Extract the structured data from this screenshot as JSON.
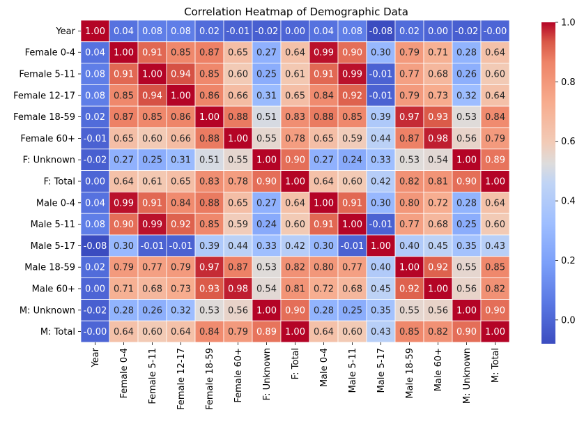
{
  "chart_data": {
    "type": "heatmap",
    "title": "Correlation Heatmap of Demographic Data",
    "labels": [
      "Year",
      "Female 0-4",
      "Female 5-11",
      "Female 12-17",
      "Female 18-59",
      "Female 60+",
      "F: Unknown",
      "F: Total",
      "Male 0-4",
      "Male 5-11",
      "Male 5-17",
      "Male 18-59",
      "Male 60+",
      "M: Unknown",
      "M: Total"
    ],
    "cell_labels": [
      [
        "1.00",
        "0.04",
        "0.08",
        "0.08",
        "0.02",
        "-0.01",
        "-0.02",
        "0.00",
        "0.04",
        "0.08",
        "-0.08",
        "0.02",
        "0.00",
        "-0.02",
        "-0.00"
      ],
      [
        "0.04",
        "1.00",
        "0.91",
        "0.85",
        "0.87",
        "0.65",
        "0.27",
        "0.64",
        "0.99",
        "0.90",
        "0.30",
        "0.79",
        "0.71",
        "0.28",
        "0.64"
      ],
      [
        "0.08",
        "0.91",
        "1.00",
        "0.94",
        "0.85",
        "0.60",
        "0.25",
        "0.61",
        "0.91",
        "0.99",
        "-0.01",
        "0.77",
        "0.68",
        "0.26",
        "0.60"
      ],
      [
        "0.08",
        "0.85",
        "0.94",
        "1.00",
        "0.86",
        "0.66",
        "0.31",
        "0.65",
        "0.84",
        "0.92",
        "-0.01",
        "0.79",
        "0.73",
        "0.32",
        "0.64"
      ],
      [
        "0.02",
        "0.87",
        "0.85",
        "0.86",
        "1.00",
        "0.88",
        "0.51",
        "0.83",
        "0.88",
        "0.85",
        "0.39",
        "0.97",
        "0.93",
        "0.53",
        "0.84"
      ],
      [
        "-0.01",
        "0.65",
        "0.60",
        "0.66",
        "0.88",
        "1.00",
        "0.55",
        "0.78",
        "0.65",
        "0.59",
        "0.44",
        "0.87",
        "0.98",
        "0.56",
        "0.79"
      ],
      [
        "-0.02",
        "0.27",
        "0.25",
        "0.31",
        "0.51",
        "0.55",
        "1.00",
        "0.90",
        "0.27",
        "0.24",
        "0.33",
        "0.53",
        "0.54",
        "1.00",
        "0.89"
      ],
      [
        "0.00",
        "0.64",
        "0.61",
        "0.65",
        "0.83",
        "0.78",
        "0.90",
        "1.00",
        "0.64",
        "0.60",
        "0.42",
        "0.82",
        "0.81",
        "0.90",
        "1.00"
      ],
      [
        "0.04",
        "0.99",
        "0.91",
        "0.84",
        "0.88",
        "0.65",
        "0.27",
        "0.64",
        "1.00",
        "0.91",
        "0.30",
        "0.80",
        "0.72",
        "0.28",
        "0.64"
      ],
      [
        "0.08",
        "0.90",
        "0.99",
        "0.92",
        "0.85",
        "0.59",
        "0.24",
        "0.60",
        "0.91",
        "1.00",
        "-0.01",
        "0.77",
        "0.68",
        "0.25",
        "0.60"
      ],
      [
        "-0.08",
        "0.30",
        "-0.01",
        "-0.01",
        "0.39",
        "0.44",
        "0.33",
        "0.42",
        "0.30",
        "-0.01",
        "1.00",
        "0.40",
        "0.45",
        "0.35",
        "0.43"
      ],
      [
        "0.02",
        "0.79",
        "0.77",
        "0.79",
        "0.97",
        "0.87",
        "0.53",
        "0.82",
        "0.80",
        "0.77",
        "0.40",
        "1.00",
        "0.92",
        "0.55",
        "0.85"
      ],
      [
        "0.00",
        "0.71",
        "0.68",
        "0.73",
        "0.93",
        "0.98",
        "0.54",
        "0.81",
        "0.72",
        "0.68",
        "0.45",
        "0.92",
        "1.00",
        "0.56",
        "0.82"
      ],
      [
        "-0.02",
        "0.28",
        "0.26",
        "0.32",
        "0.53",
        "0.56",
        "1.00",
        "0.90",
        "0.28",
        "0.25",
        "0.35",
        "0.55",
        "0.56",
        "1.00",
        "0.90"
      ],
      [
        "-0.00",
        "0.64",
        "0.60",
        "0.64",
        "0.84",
        "0.79",
        "0.89",
        "1.00",
        "0.64",
        "0.60",
        "0.43",
        "0.85",
        "0.82",
        "0.90",
        "1.00"
      ]
    ],
    "colormap": "coolwarm",
    "vmin": -0.08,
    "vmax": 1.0,
    "colorbar_ticks": [
      "0.0",
      "0.2",
      "0.4",
      "0.6",
      "0.8",
      "1.0"
    ],
    "colorbar_tick_values": [
      0.0,
      0.2,
      0.4,
      0.6,
      0.8,
      1.0
    ],
    "grid": true,
    "legend": "colorbar-right"
  }
}
